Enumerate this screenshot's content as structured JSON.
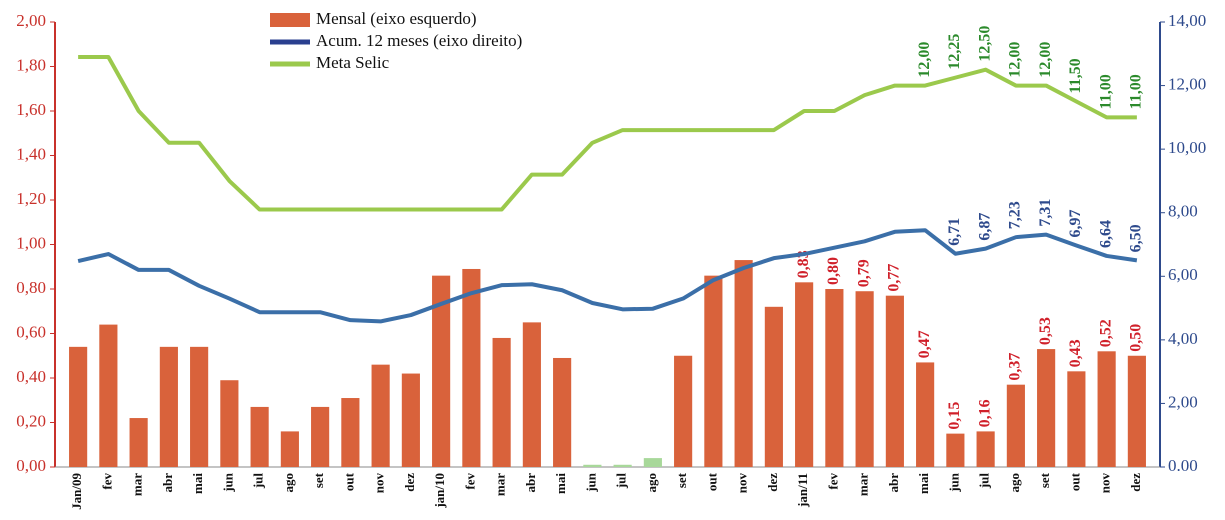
{
  "chart_data": {
    "type": "bar",
    "categories": [
      "Jan/09",
      "fev",
      "mar",
      "abr",
      "mai",
      "jun",
      "jul",
      "ago",
      "set",
      "out",
      "nov",
      "dez",
      "jan/10",
      "fev",
      "mar",
      "abr",
      "mai",
      "jun",
      "jul",
      "ago",
      "set",
      "out",
      "nov",
      "dez",
      "jan/11",
      "fev",
      "mar",
      "abr",
      "mai",
      "jun",
      "jul",
      "ago",
      "set",
      "out",
      "nov",
      "dez"
    ],
    "ylim": [
      0,
      2
    ],
    "yticks": [
      {
        "value": 0,
        "label": "0,00"
      },
      {
        "value": 0.2,
        "label": "0,20"
      },
      {
        "value": 0.4,
        "label": "0,40"
      },
      {
        "value": 0.6,
        "label": "0,60"
      },
      {
        "value": 0.8,
        "label": "0,80"
      },
      {
        "value": 1,
        "label": "1,00"
      },
      {
        "value": 1.2,
        "label": "1,20"
      },
      {
        "value": 1.4,
        "label": "1,40"
      },
      {
        "value": 1.6,
        "label": "1,60"
      },
      {
        "value": 1.8,
        "label": "1,80"
      },
      {
        "value": 2,
        "label": "2,00"
      }
    ],
    "y2lim": [
      0,
      14
    ],
    "y2ticks": [
      {
        "value": 0,
        "label": "0.00"
      },
      {
        "value": 2,
        "label": "2,00"
      },
      {
        "value": 4,
        "label": "4,00"
      },
      {
        "value": 6,
        "label": "6,00"
      },
      {
        "value": 8,
        "label": "8,00"
      },
      {
        "value": 10,
        "label": "10,00"
      },
      {
        "value": 12,
        "label": "12,00"
      },
      {
        "value": 14,
        "label": "14,00"
      }
    ],
    "series": [
      {
        "name": "Mensal (eixo esquerdo)",
        "type": "bar",
        "color": "#d9623b",
        "colors": [
          "#d9623b",
          "#d9623b",
          "#d9623b",
          "#d9623b",
          "#d9623b",
          "#d9623b",
          "#d9623b",
          "#d9623b",
          "#d9623b",
          "#d9623b",
          "#d9623b",
          "#d9623b",
          "#d9623b",
          "#d9623b",
          "#d9623b",
          "#d9623b",
          "#d9623b",
          "#a8d89a",
          "#a8d89a",
          "#a8d89a",
          "#d9623b",
          "#d9623b",
          "#d9623b",
          "#d9623b",
          "#d9623b",
          "#d9623b",
          "#d9623b",
          "#d9623b",
          "#d9623b",
          "#d9623b",
          "#d9623b",
          "#d9623b",
          "#d9623b",
          "#d9623b",
          "#d9623b",
          "#d9623b"
        ],
        "values": [
          0.54,
          0.64,
          0.22,
          0.54,
          0.54,
          0.39,
          0.27,
          0.16,
          0.27,
          0.31,
          0.46,
          0.42,
          0.86,
          0.89,
          0.58,
          0.65,
          0.49,
          0.01,
          0.01,
          0.04,
          0.5,
          0.86,
          0.93,
          0.72,
          0.83,
          0.8,
          0.79,
          0.77,
          0.47,
          0.15,
          0.16,
          0.37,
          0.53,
          0.43,
          0.52,
          0.5
        ],
        "value_labels": [
          null,
          null,
          null,
          null,
          null,
          null,
          null,
          null,
          null,
          null,
          null,
          null,
          null,
          null,
          null,
          null,
          null,
          null,
          null,
          null,
          null,
          null,
          null,
          null,
          "0,83",
          "0,80",
          "0,79",
          "0,77",
          "0,47",
          "0,15",
          "0,16",
          "0,37",
          "0,53",
          "0,43",
          "0,52",
          "0,50"
        ]
      },
      {
        "name": "Acum. 12 meses (eixo direito)",
        "type": "line",
        "axis": "y2",
        "color": "#3b6fa8",
        "values": [
          6.48,
          6.7,
          6.2,
          6.2,
          5.7,
          5.3,
          4.87,
          4.87,
          4.87,
          4.62,
          4.58,
          4.78,
          5.13,
          5.47,
          5.72,
          5.75,
          5.56,
          5.16,
          4.96,
          4.98,
          5.3,
          5.88,
          6.26,
          6.57,
          6.7,
          6.9,
          7.1,
          7.4,
          7.45,
          6.71,
          6.87,
          7.23,
          7.31,
          6.97,
          6.64,
          6.5
        ],
        "value_labels": [
          null,
          null,
          null,
          null,
          null,
          null,
          null,
          null,
          null,
          null,
          null,
          null,
          null,
          null,
          null,
          null,
          null,
          null,
          null,
          null,
          null,
          null,
          null,
          null,
          null,
          null,
          null,
          null,
          null,
          "6,71",
          "6,87",
          "7,23",
          "7,31",
          "6,97",
          "6,64",
          "6,50"
        ]
      },
      {
        "name": "Meta Selic",
        "type": "line",
        "axis": "y2",
        "color": "#9bc94c",
        "values": [
          12.9,
          12.9,
          11.2,
          10.2,
          10.2,
          9.0,
          8.1,
          8.1,
          8.1,
          8.1,
          8.1,
          8.1,
          8.1,
          8.1,
          8.1,
          9.2,
          9.2,
          10.2,
          10.6,
          10.6,
          10.6,
          10.6,
          10.6,
          10.6,
          11.2,
          11.2,
          11.7,
          12.0,
          12.0,
          12.25,
          12.5,
          12.0,
          12.0,
          11.5,
          11.0,
          11.0
        ],
        "value_labels": [
          null,
          null,
          null,
          null,
          null,
          null,
          null,
          null,
          null,
          null,
          null,
          null,
          null,
          null,
          null,
          null,
          null,
          null,
          null,
          null,
          null,
          null,
          null,
          null,
          null,
          null,
          null,
          null,
          "12,00",
          "12,25",
          "12,50",
          "12,00",
          "12,00",
          "11,50",
          "11,00",
          "11,00"
        ]
      }
    ]
  }
}
